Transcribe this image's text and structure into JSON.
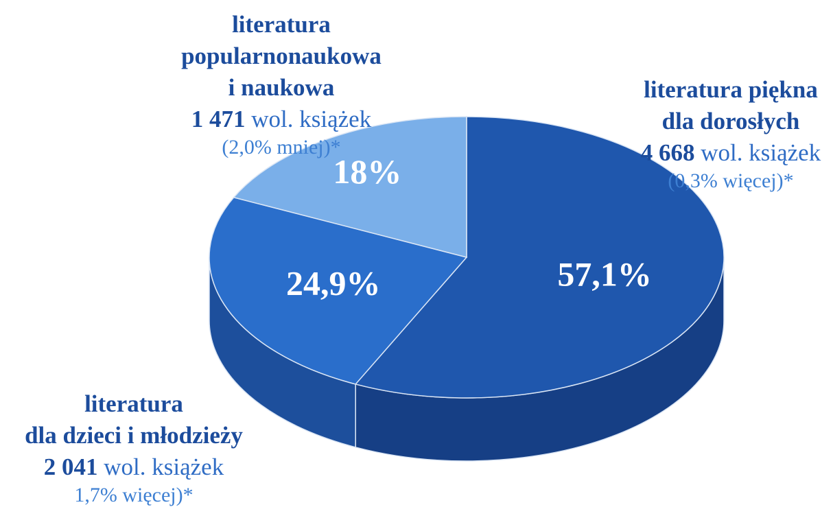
{
  "chart_data": {
    "type": "pie",
    "categories": [
      [
        "literatura piękna",
        "dla dorosłych"
      ],
      [
        "literatura",
        "dla dzieci i młodzieży"
      ],
      [
        "literatura",
        "popularnonaukowa",
        "i naukowa"
      ]
    ],
    "values": [
      57.1,
      24.9,
      18
    ],
    "value_labels": [
      "57,1%",
      "24,9%",
      "18%"
    ],
    "colors": [
      "#1f57ad",
      "#2a6ecb",
      "#7aafe9"
    ],
    "side_colors": [
      "#163f85",
      "#1d4f9c",
      "#5a8fd0"
    ],
    "label_details": [
      {
        "count": "4 668",
        "unit": "wol. książek",
        "change": "(0,3% więcej)*"
      },
      {
        "count": "2 041",
        "unit": "wol. książek",
        "change": "1,7% więcej)*"
      },
      {
        "count": "1 471",
        "unit": "wol. książek",
        "change": "(2,0% mniej)*"
      }
    ]
  }
}
